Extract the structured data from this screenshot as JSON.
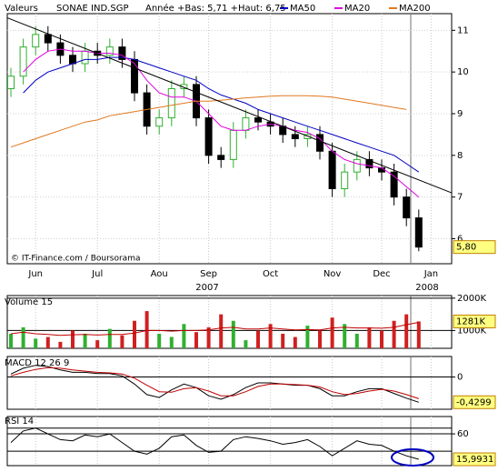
{
  "header": {
    "label": "Valeurs",
    "symbol": "SONAE IND.SGP",
    "range": "Année +Bas: 5,71 +Haut: 6,75"
  },
  "chart_data": [
    {
      "type": "candlestick",
      "categories": [
        null,
        null,
        "Jun",
        null,
        null,
        null,
        null,
        "Jul",
        null,
        null,
        null,
        null,
        "Aou",
        null,
        null,
        null,
        "Sep",
        null,
        null,
        null,
        null,
        "Oct",
        null,
        null,
        null,
        null,
        "Nov",
        null,
        null,
        null,
        "Dec",
        null,
        null,
        null,
        "Jan"
      ],
      "open": [
        9.6,
        9.9,
        10.6,
        10.9,
        10.7,
        10.4,
        10.2,
        10.5,
        10.4,
        10.6,
        10.3,
        9.5,
        8.7,
        8.9,
        9.6,
        9.7,
        8.9,
        8.0,
        7.9,
        8.6,
        8.9,
        8.8,
        8.7,
        8.5,
        8.4,
        8.5,
        8.1,
        7.2,
        7.6,
        7.9,
        7.7,
        7.6,
        7.0,
        6.5,
        null
      ],
      "high": [
        10.1,
        10.8,
        11.1,
        11.1,
        10.9,
        10.6,
        10.7,
        10.7,
        10.8,
        10.8,
        10.5,
        9.7,
        9.1,
        9.8,
        9.9,
        9.9,
        9.1,
        8.2,
        8.8,
        9.1,
        9.1,
        9.0,
        8.9,
        8.7,
        8.7,
        8.7,
        8.3,
        7.8,
        8.1,
        8.1,
        7.9,
        7.8,
        7.2,
        6.7,
        null
      ],
      "low": [
        9.4,
        9.7,
        10.4,
        10.5,
        10.2,
        10.0,
        10.0,
        10.2,
        10.2,
        10.1,
        9.3,
        8.5,
        8.5,
        8.7,
        9.4,
        8.7,
        7.8,
        7.7,
        7.7,
        8.4,
        8.6,
        8.5,
        8.3,
        8.2,
        8.2,
        7.9,
        7.0,
        7.0,
        7.4,
        7.5,
        7.4,
        6.8,
        6.3,
        5.7,
        null
      ],
      "close": [
        9.9,
        10.6,
        10.9,
        10.7,
        10.4,
        10.2,
        10.5,
        10.4,
        10.6,
        10.3,
        9.5,
        8.7,
        8.9,
        9.6,
        9.7,
        8.9,
        8.0,
        7.9,
        8.6,
        8.9,
        8.8,
        8.7,
        8.5,
        8.4,
        8.5,
        8.1,
        7.2,
        7.6,
        7.9,
        7.7,
        7.6,
        7.0,
        6.5,
        5.8,
        null
      ],
      "up_color": "#30b030",
      "down_color": "#000000",
      "series": [
        {
          "name": "MA50",
          "color": "#0000c0",
          "values": [
            null,
            9.5,
            9.8,
            10.0,
            10.1,
            10.2,
            10.3,
            10.3,
            10.35,
            10.35,
            10.3,
            10.2,
            10.1,
            10.0,
            9.9,
            9.8,
            9.6,
            9.45,
            9.35,
            9.25,
            9.1,
            9.0,
            8.9,
            8.8,
            8.7,
            8.6,
            8.5,
            8.4,
            8.3,
            8.2,
            8.1,
            8.0,
            7.8,
            7.6,
            null
          ]
        },
        {
          "name": "MA20",
          "color": "#e000e0",
          "values": [
            null,
            10.0,
            10.3,
            10.5,
            10.55,
            10.5,
            10.5,
            10.45,
            10.45,
            10.4,
            10.2,
            9.8,
            9.5,
            9.4,
            9.4,
            9.3,
            9.0,
            8.7,
            8.6,
            8.6,
            8.7,
            8.75,
            8.7,
            8.6,
            8.55,
            8.4,
            8.1,
            7.9,
            7.8,
            7.75,
            7.7,
            7.5,
            7.25,
            7.0,
            null
          ]
        },
        {
          "name": "MA200",
          "color": "#e07820",
          "values": [
            8.2,
            8.3,
            8.4,
            8.5,
            8.6,
            8.7,
            8.8,
            8.85,
            8.95,
            9.0,
            9.05,
            9.1,
            9.15,
            9.2,
            9.25,
            9.3,
            9.3,
            9.32,
            9.35,
            9.38,
            9.4,
            9.42,
            9.43,
            9.43,
            9.43,
            9.42,
            9.4,
            9.35,
            9.3,
            9.25,
            9.2,
            9.15,
            9.1,
            null,
            null
          ]
        }
      ],
      "trendline": [
        11.3,
        7.1
      ],
      "ylim": [
        5.4,
        11.4
      ],
      "yticks": [
        6,
        7,
        8,
        9,
        10,
        11
      ],
      "grid": true,
      "last_label": {
        "value": 5.8,
        "label": "5,80"
      },
      "source": "© IT-Finance.com / Boursorama",
      "year_labels": [
        "2007",
        "2008"
      ]
    },
    {
      "type": "bar",
      "title": "Volume 15",
      "values": [
        900,
        1100,
        750,
        800,
        650,
        1000,
        900,
        700,
        1050,
        850,
        1300,
        1600,
        900,
        800,
        1200,
        950,
        1100,
        1500,
        1300,
        700,
        1000,
        1200,
        900,
        800,
        1150,
        1000,
        1400,
        1200,
        900,
        1100,
        1000,
        1300,
        1500,
        1281,
        null
      ],
      "series": [
        {
          "color": "#c00000",
          "values": [
            900,
            950,
            900,
            880,
            850,
            870,
            880,
            860,
            880,
            880,
            920,
            1000,
            1000,
            980,
            1000,
            1000,
            1020,
            1080,
            1100,
            1050,
            1050,
            1080,
            1050,
            1020,
            1030,
            1020,
            1080,
            1100,
            1080,
            1080,
            1070,
            1100,
            1180,
            1250,
            null
          ]
        }
      ],
      "up_color": "#30b030",
      "down_color": "#d02020",
      "ylim": [
        450,
        2080
      ],
      "yticks": [
        {
          "value": 1000,
          "label": "1000K"
        },
        {
          "value": 2000,
          "label": "2000K"
        }
      ],
      "last_label": {
        "value": 1281,
        "label": "1281K"
      }
    },
    {
      "type": "line",
      "title": "MACD 12 26 9",
      "series": [
        {
          "color": "#000000",
          "values": [
            0.05,
            0.15,
            0.2,
            0.18,
            0.12,
            0.08,
            0.08,
            0.06,
            0.06,
            0.02,
            -0.12,
            -0.3,
            -0.35,
            -0.22,
            -0.12,
            -0.18,
            -0.32,
            -0.38,
            -0.3,
            -0.18,
            -0.1,
            -0.1,
            -0.12,
            -0.14,
            -0.14,
            -0.2,
            -0.32,
            -0.32,
            -0.25,
            -0.2,
            -0.2,
            -0.28,
            -0.36,
            -0.43,
            null
          ]
        },
        {
          "color": "#c00000",
          "values": [
            0.02,
            0.08,
            0.13,
            0.16,
            0.15,
            0.12,
            0.1,
            0.08,
            0.07,
            0.05,
            -0.02,
            -0.14,
            -0.25,
            -0.26,
            -0.2,
            -0.18,
            -0.24,
            -0.32,
            -0.32,
            -0.25,
            -0.16,
            -0.12,
            -0.12,
            -0.13,
            -0.14,
            -0.17,
            -0.25,
            -0.3,
            -0.28,
            -0.24,
            -0.21,
            -0.24,
            -0.3,
            -0.37,
            null
          ]
        }
      ],
      "ylim": [
        -0.55,
        0.35
      ],
      "yticks": [
        0
      ],
      "last_label": {
        "value": -0.4299,
        "label": "-0,4299"
      }
    },
    {
      "type": "line",
      "title": "RSI 14",
      "series": [
        {
          "color": "#000000",
          "values": [
            45,
            65,
            70,
            60,
            50,
            48,
            58,
            55,
            60,
            45,
            30,
            25,
            35,
            55,
            58,
            40,
            28,
            30,
            50,
            55,
            52,
            48,
            42,
            45,
            50,
            38,
            22,
            35,
            48,
            42,
            40,
            30,
            22,
            16,
            null
          ]
        }
      ],
      "ylim": [
        5,
        90
      ],
      "yticks": [
        60
      ],
      "levels": [
        70,
        30
      ],
      "last_label": {
        "value": 15.9931,
        "label": "15,9931"
      }
    }
  ]
}
